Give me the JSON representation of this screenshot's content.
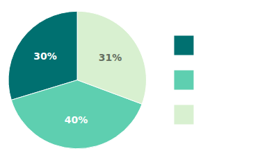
{
  "chart_data": {
    "type": "pie",
    "values": [
      30,
      40,
      31
    ],
    "value_labels": [
      "30%",
      "40%",
      "31%"
    ],
    "colors": [
      "#007070",
      "#5ECFB0",
      "#D8F0D0"
    ],
    "data_labels": true,
    "legend": "right"
  }
}
